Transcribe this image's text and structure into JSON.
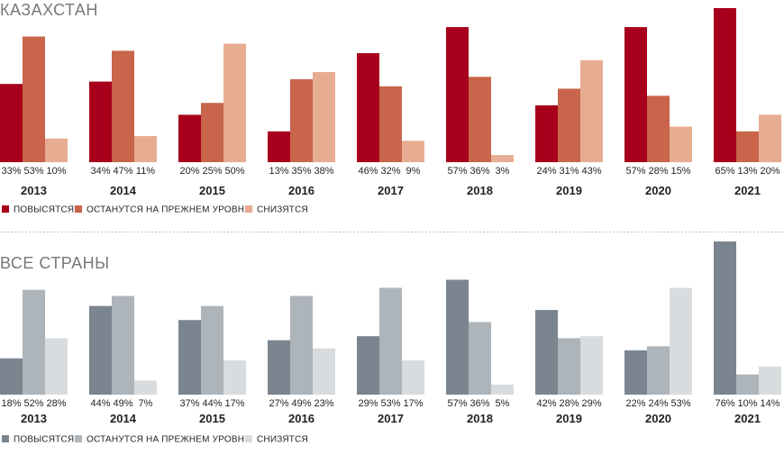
{
  "chart_data": [
    {
      "type": "bar",
      "title": "КАЗАХСТАН",
      "categories": [
        "2013",
        "2014",
        "2015",
        "2016",
        "2017",
        "2018",
        "2019",
        "2020",
        "2021"
      ],
      "value_labels": [
        [
          "33%",
          "53%",
          "10%"
        ],
        [
          "34%",
          "47%",
          "11%"
        ],
        [
          "20%",
          "25%",
          "50%"
        ],
        [
          "13%",
          "35%",
          "38%"
        ],
        [
          "46%",
          "32%",
          "9%"
        ],
        [
          "57%",
          "36%",
          "3%"
        ],
        [
          "24%",
          "31%",
          "43%"
        ],
        [
          "57%",
          "28%",
          "15%"
        ],
        [
          "65%",
          "13%",
          "20%"
        ]
      ],
      "series": [
        {
          "name": "ПОВЫСЯТСЯ",
          "color": "#a8001c",
          "values": [
            33,
            34,
            20,
            13,
            46,
            57,
            24,
            57,
            65
          ]
        },
        {
          "name": "ОСТАНУТСЯ НА ПРЕЖНЕМ УРОВНЕ",
          "color": "#c8654b",
          "values": [
            53,
            47,
            25,
            35,
            32,
            36,
            31,
            28,
            13
          ]
        },
        {
          "name": "СНИЗЯТСЯ",
          "color": "#e7ad92",
          "values": [
            10,
            11,
            50,
            38,
            9,
            3,
            43,
            15,
            20
          ]
        }
      ],
      "ylim": [
        0,
        65
      ],
      "legend": "bottom-left"
    },
    {
      "type": "bar",
      "title": "ВСЕ СТРАНЫ",
      "categories": [
        "2013",
        "2014",
        "2015",
        "2016",
        "2017",
        "2018",
        "2019",
        "2020",
        "2021"
      ],
      "value_labels": [
        [
          "18%",
          "52%",
          "28%"
        ],
        [
          "44%",
          "49%",
          "7%"
        ],
        [
          "37%",
          "44%",
          "17%"
        ],
        [
          "27%",
          "49%",
          "23%"
        ],
        [
          "29%",
          "53%",
          "17%"
        ],
        [
          "57%",
          "36%",
          "5%"
        ],
        [
          "42%",
          "28%",
          "29%"
        ],
        [
          "22%",
          "24%",
          "53%"
        ],
        [
          "76%",
          "10%",
          "14%"
        ]
      ],
      "series": [
        {
          "name": "ПОВЫСЯТСЯ",
          "color": "#7b858f",
          "values": [
            18,
            44,
            37,
            27,
            29,
            57,
            42,
            22,
            76
          ]
        },
        {
          "name": "ОСТАНУТСЯ НА ПРЕЖНЕМ УРОВНЕ",
          "color": "#adb4ba",
          "values": [
            52,
            49,
            44,
            49,
            53,
            36,
            28,
            24,
            10
          ]
        },
        {
          "name": "СНИЗЯТСЯ",
          "color": "#d9dcdf",
          "values": [
            28,
            7,
            17,
            23,
            17,
            5,
            29,
            53,
            14
          ]
        }
      ],
      "ylim": [
        0,
        76
      ],
      "legend": "bottom-left"
    }
  ],
  "colors": {
    "divider": "#bdbdbd",
    "text": "#231f20",
    "title": "#77787b"
  }
}
